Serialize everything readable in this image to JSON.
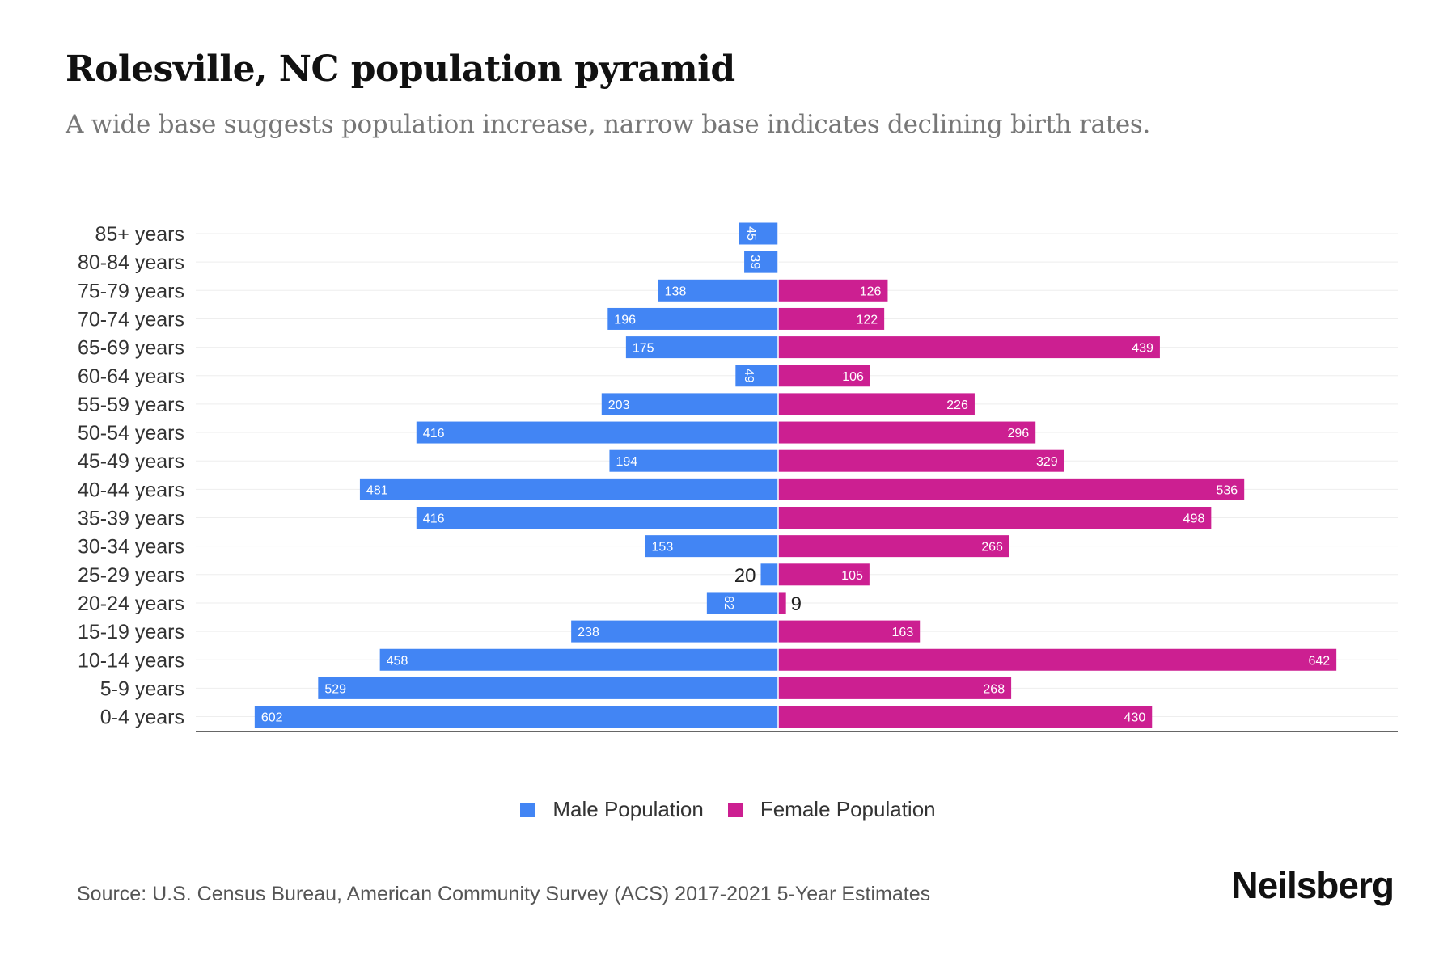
{
  "chart_data": {
    "type": "bar",
    "title": "Rolesville, NC population pyramid",
    "subtitle": "A wide base suggests population increase, narrow base indicates declining birth rates.",
    "categories": [
      "85+ years",
      "80-84 years",
      "75-79 years",
      "70-74 years",
      "65-69 years",
      "60-64 years",
      "55-59 years",
      "50-54 years",
      "45-49 years",
      "40-44 years",
      "35-39 years",
      "30-34 years",
      "25-29 years",
      "20-24 years",
      "15-19 years",
      "10-14 years",
      "5-9 years",
      "0-4 years"
    ],
    "series": [
      {
        "name": "Male Population",
        "color": "#4285f4",
        "values": [
          45,
          39,
          138,
          196,
          175,
          49,
          203,
          416,
          194,
          481,
          416,
          153,
          20,
          82,
          238,
          458,
          529,
          602
        ]
      },
      {
        "name": "Female Population",
        "color": "#cc1f91",
        "values": [
          0,
          0,
          126,
          122,
          439,
          106,
          226,
          296,
          329,
          536,
          498,
          266,
          105,
          9,
          163,
          642,
          268,
          430
        ]
      }
    ],
    "legend_position": "bottom-center",
    "grid": true
  },
  "source": "Source: U.S. Census Bureau, American Community Survey (ACS) 2017-2021 5-Year Estimates",
  "logo": "Neilsberg"
}
